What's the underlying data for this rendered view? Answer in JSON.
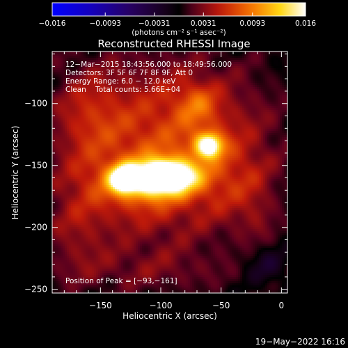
{
  "chart_data": {
    "type": "heatmap",
    "title": "Reconstructed RHESSI Image",
    "xlabel": "Heliocentric X (arcsec)",
    "ylabel": "Heliocentric Y (arcsec)",
    "xlim": [
      -190,
      5
    ],
    "ylim": [
      -253,
      -58
    ],
    "x_ticks": [
      -150,
      -100,
      -50,
      0
    ],
    "y_ticks": [
      -100,
      -150,
      -200,
      -250
    ],
    "colorbar": {
      "range": [
        -0.016,
        0.016
      ],
      "tick_values": [
        -0.016,
        -0.0093,
        -0.0031,
        0.0031,
        0.0093,
        0.016
      ],
      "tick_labels": [
        "−0.016",
        "−0.0093",
        "−0.0031",
        "0.0031",
        "0.0093",
        "0.016"
      ],
      "unit": "(photons cm⁻² s⁻¹ asec⁻²)",
      "colormap": "blue-purple-red-orange-yellow-white"
    },
    "annotations": [
      "12−Mar−2015 18:43:56.000 to 18:49:56.000",
      "Detectors: 3F 5F 6F 7F 8F 9F, Att 0",
      "Energy Range: 6.0 − 12.0 keV",
      "Clean    Total counts: 5.66E+04"
    ],
    "peak_label": "Position of Peak = [−93,−161]",
    "sources": [
      {
        "x": -95,
        "y": -159,
        "sx": 17,
        "sy": 9,
        "peak": 0.016
      },
      {
        "x": -130,
        "y": -161,
        "sx": 8,
        "sy": 7,
        "peak": 0.0135
      },
      {
        "x": -116,
        "y": -163,
        "sx": 25,
        "sy": 12,
        "peak": 0.006
      },
      {
        "x": -60,
        "y": -134,
        "sx": 8,
        "sy": 7,
        "peak": 0.0128
      },
      {
        "x": -92,
        "y": -118,
        "sx": 55,
        "sy": 38,
        "peak": 0.0058
      },
      {
        "x": -108,
        "y": -175,
        "sx": 48,
        "sy": 30,
        "peak": 0.0042
      },
      {
        "x": -70,
        "y": -100,
        "sx": 12,
        "sy": 12,
        "peak": 0.004
      },
      {
        "x": -160,
        "y": -110,
        "sx": 20,
        "sy": 28,
        "peak": 0.0032
      },
      {
        "x": -40,
        "y": -160,
        "sx": 22,
        "sy": 25,
        "peak": 0.0025
      },
      {
        "x": -110,
        "y": -235,
        "sx": 55,
        "sy": 14,
        "peak": 0.0022
      },
      {
        "x": -170,
        "y": -200,
        "sx": 18,
        "sy": 30,
        "peak": 0.0025
      },
      {
        "x": -20,
        "y": -200,
        "sx": 12,
        "sy": 30,
        "peak": 0.0018
      },
      {
        "x": -15,
        "y": -230,
        "sx": 12,
        "sy": 12,
        "peak": -0.0035
      }
    ]
  },
  "footer": {
    "timestamp": "19−May−2022 16:16"
  }
}
